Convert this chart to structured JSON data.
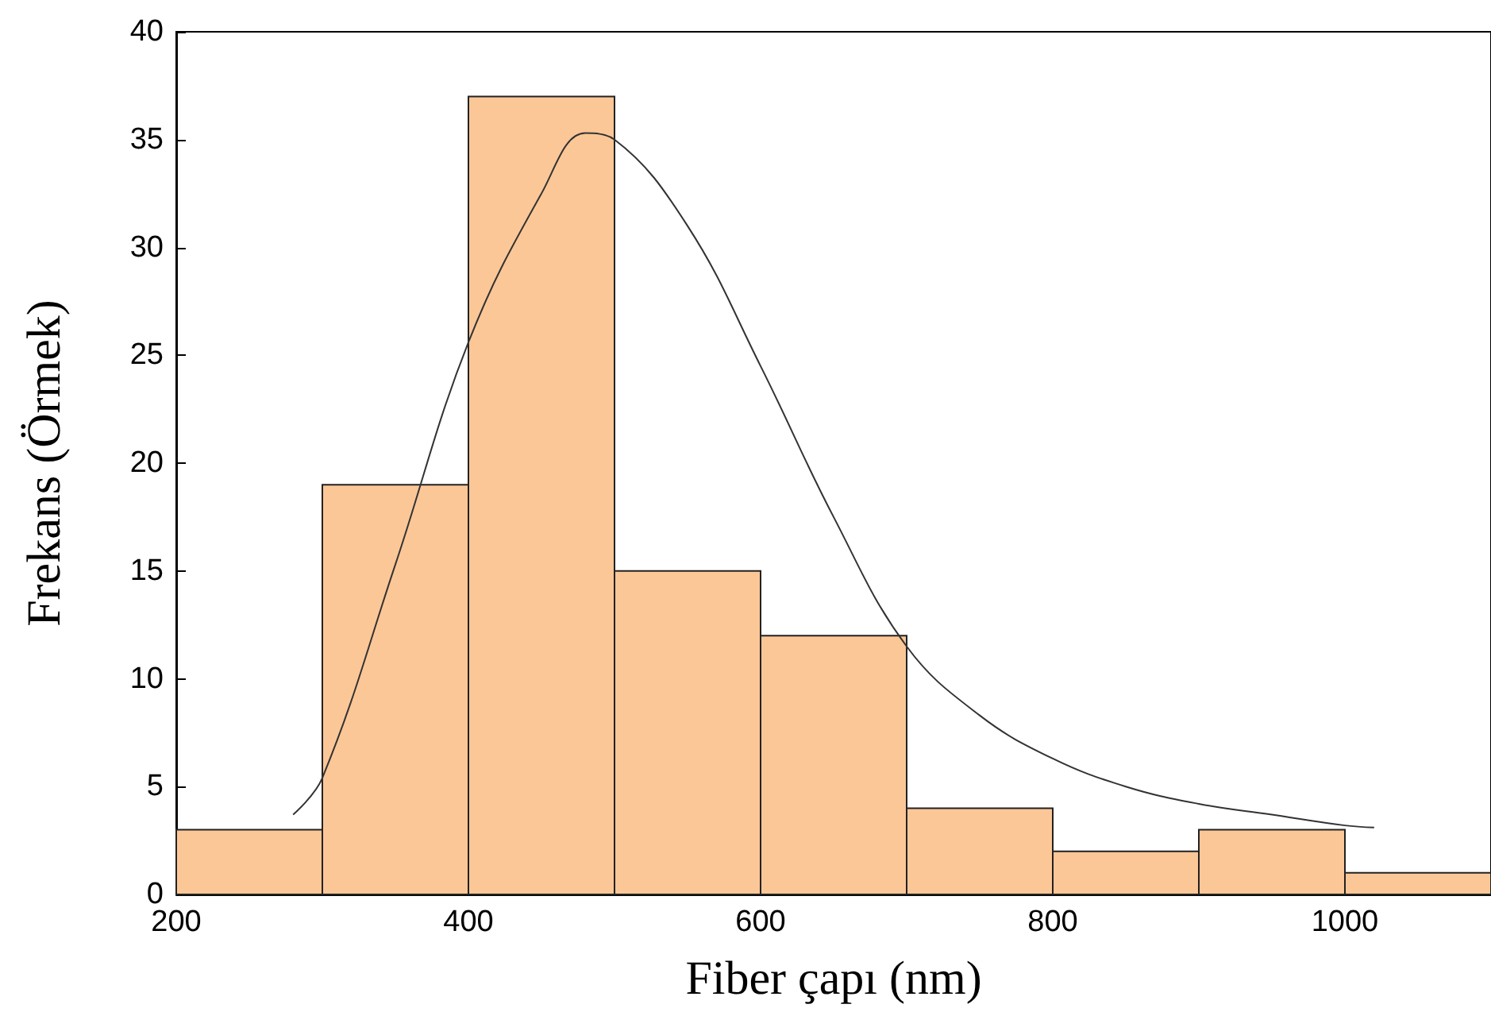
{
  "chart_data": {
    "type": "histogram",
    "xlabel": "Fiber çapı (nm)",
    "ylabel": "Frekans (Örmek)",
    "bins": [
      200,
      300,
      400,
      500,
      600,
      700,
      800,
      900,
      1000,
      1100
    ],
    "values": [
      3,
      19,
      37,
      15,
      12,
      4,
      2,
      3,
      1
    ],
    "color": "#fcc797",
    "xlim": [
      200,
      1100
    ],
    "xticks": [
      200,
      400,
      600,
      800,
      1000
    ],
    "ylim": [
      0,
      40
    ],
    "yticks": [
      0,
      5,
      10,
      15,
      20,
      25,
      30,
      35,
      40
    ],
    "grid": false,
    "series": [
      {
        "type": "line",
        "color": "#333333",
        "line_style": "solid",
        "marker": "none",
        "x": [
          280,
          300,
          350,
          400,
          450,
          480,
          500,
          550,
          600,
          650,
          700,
          750,
          800,
          850,
          900,
          950,
          1000,
          1020
        ],
        "values": [
          3.7,
          5.4,
          15.3,
          25.6,
          32.5,
          35.3,
          35,
          31,
          24.5,
          17.5,
          11.5,
          8.3,
          6.3,
          5,
          4.2,
          3.7,
          3.2,
          3.1
        ]
      }
    ]
  }
}
